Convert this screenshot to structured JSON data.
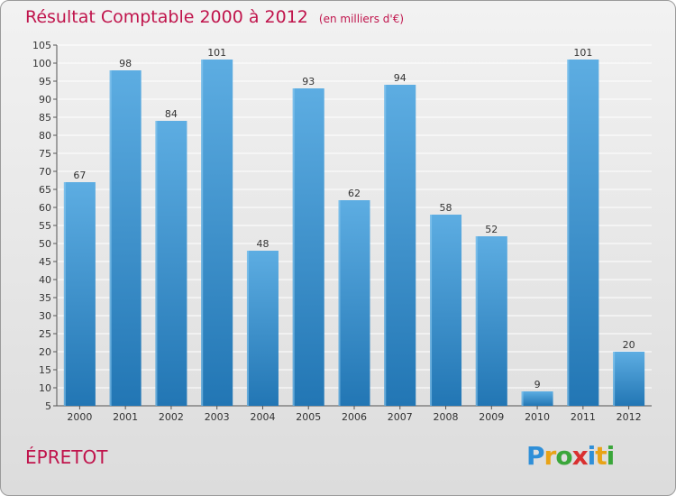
{
  "title": "Résultat Comptable 2000 à 2012",
  "subtitle": "(en milliers d'€)",
  "commune": "ÉPRETOT",
  "logo": {
    "text": "Proxiti",
    "letter_colors": [
      "#2f8fd8",
      "#e8a317",
      "#3aa63a",
      "#d93030",
      "#2f8fd8",
      "#e8a317",
      "#3aa63a"
    ]
  },
  "colors": {
    "bar_light": "#5dade2",
    "bar_dark": "#2276b4",
    "title": "#c0144c",
    "grid": "#ffffff"
  },
  "chart_data": {
    "type": "bar",
    "title": "Résultat Comptable 2000 à 2012",
    "subtitle": "(en milliers d'€)",
    "categories": [
      "2000",
      "2001",
      "2002",
      "2003",
      "2004",
      "2005",
      "2006",
      "2007",
      "2008",
      "2009",
      "2010",
      "2011",
      "2012"
    ],
    "values": [
      67,
      98,
      84,
      101,
      48,
      93,
      62,
      94,
      58,
      52,
      9,
      101,
      20
    ],
    "ylim": [
      5,
      105
    ],
    "yticks": [
      5,
      10,
      15,
      20,
      25,
      30,
      35,
      40,
      45,
      50,
      55,
      60,
      65,
      70,
      75,
      80,
      85,
      90,
      95,
      100,
      105
    ],
    "grid": true,
    "xlabel": "",
    "ylabel": ""
  }
}
